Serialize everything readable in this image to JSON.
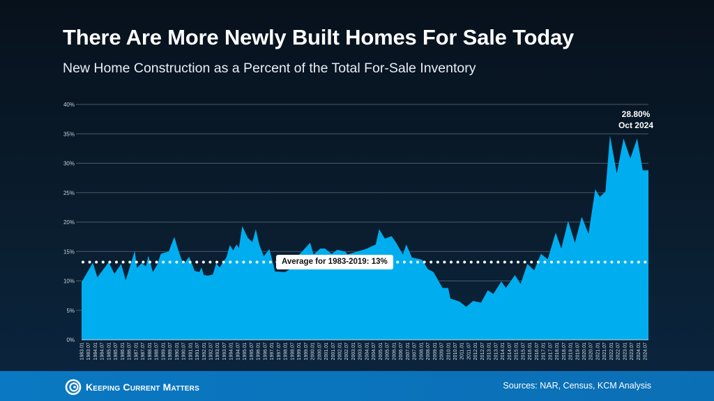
{
  "header": {
    "title": "There Are More Newly Built Homes For Sale Today",
    "subtitle": "New Home Construction as a Percent of the Total For-Sale Inventory"
  },
  "footer": {
    "logo_text": "Keeping Current Matters",
    "sources": "Sources: NAR, Census, KCM Analysis",
    "band_color": "#0a78c2"
  },
  "chart_data": {
    "type": "area",
    "color": "#00aeef",
    "ylim": [
      0,
      40
    ],
    "yticks": [
      "0%",
      "5%",
      "10%",
      "15%",
      "20%",
      "25%",
      "30%",
      "35%",
      "40%"
    ],
    "ytick_values": [
      0,
      5,
      10,
      15,
      20,
      25,
      30,
      35,
      40
    ],
    "grid": true,
    "xticks": [
      "1983.01",
      "1983.07",
      "1984.01",
      "1984.07",
      "1985.01",
      "1985.07",
      "1986.01",
      "1986.07",
      "1987.01",
      "1987.07",
      "1988.01",
      "1988.07",
      "1989.01",
      "1989.07",
      "1990.01",
      "1990.07",
      "1991.01",
      "1991.07",
      "1992.01",
      "1992.07",
      "1993.01",
      "1993.07",
      "1994.01",
      "1994.07",
      "1995.01",
      "1995.07",
      "1996.01",
      "1996.07",
      "1997.01",
      "1997.07",
      "1998.01",
      "1998.07",
      "1999.01",
      "1999.07",
      "2000.01",
      "2000.07",
      "2001.01",
      "2001.07",
      "2002.01",
      "2002.07",
      "2003.01",
      "2003.07",
      "2004.01",
      "2004.07",
      "2005.01",
      "2005.07",
      "2006.01",
      "2006.07",
      "2007.01",
      "2007.07",
      "2008.01",
      "2008.07",
      "2009.01",
      "2009.07",
      "2010.01",
      "2010.07",
      "2011.01",
      "2011.07",
      "2012.01",
      "2012.07",
      "2013.01",
      "2013.07",
      "2014.01",
      "2014.07",
      "2015.01",
      "2015.07",
      "2016.01",
      "2016.07",
      "2017.01",
      "2017.07",
      "2018.01",
      "2018.07",
      "2019.01",
      "2019.07",
      "2020.01",
      "2020.07",
      "2021.01",
      "2021.07",
      "2022.01",
      "2022.07",
      "2023.01",
      "2023.07",
      "2024.01",
      "2024.07"
    ],
    "x": [
      "1983-01",
      "1983-11",
      "1984-03",
      "1985-01",
      "1985-06",
      "1985-12",
      "1986-04",
      "1986-12",
      "1987-02",
      "1987-06",
      "1987-10",
      "1987-12",
      "1988-04",
      "1988-08",
      "1988-11",
      "1989-06",
      "1989-11",
      "1990-02",
      "1990-07",
      "1990-12",
      "1991-05",
      "1991-09",
      "1991-11",
      "1992-01",
      "1992-05",
      "1992-09",
      "1992-12",
      "1993-03",
      "1993-09",
      "1993-12",
      "1994-03",
      "1994-06",
      "1994-08",
      "1994-11",
      "1995-04",
      "1995-08",
      "1995-11",
      "1996-02",
      "1996-06",
      "1996-11",
      "1997-04",
      "1998-01",
      "1998-05",
      "1998-11",
      "1999-11",
      "2000-02",
      "2000-08",
      "2000-12",
      "2001-06",
      "2001-11",
      "2002-06",
      "2002-08",
      "2003-12",
      "2004-09",
      "2004-12",
      "2005-05",
      "2005-11",
      "2006-03",
      "2006-09",
      "2006-12",
      "2007-05",
      "2008-02",
      "2008-07",
      "2008-12",
      "2009-08",
      "2010-01",
      "2010-03",
      "2010-11",
      "2011-05",
      "2011-11",
      "2012-06",
      "2012-12",
      "2013-05",
      "2013-12",
      "2014-04",
      "2014-12",
      "2015-05",
      "2015-11",
      "2016-05",
      "2016-11",
      "2017-05",
      "2017-12",
      "2018-05",
      "2018-11",
      "2019-05",
      "2019-11",
      "2020-05",
      "2020-11",
      "2021-03",
      "2021-08",
      "2021-12",
      "2022-06",
      "2022-12",
      "2023-06",
      "2023-12",
      "2024-05",
      "2024-10"
    ],
    "values": [
      9.8,
      13.1,
      10.6,
      13.2,
      11.2,
      12.9,
      10.1,
      15.1,
      12.2,
      13,
      12.5,
      14.3,
      11.5,
      12.8,
      14.6,
      15,
      17.5,
      15.5,
      12.8,
      14.1,
      11.7,
      11.5,
      12.3,
      11,
      10.9,
      11.1,
      13,
      12.3,
      14,
      16.1,
      15.2,
      16.2,
      15.6,
      19.3,
      17.3,
      16.6,
      18.8,
      16.2,
      14.2,
      15.4,
      11.6,
      11.5,
      12,
      14,
      16.5,
      14.5,
      15.5,
      15.5,
      14.6,
      15.3,
      15,
      14.5,
      15.4,
      16.2,
      18.8,
      17.2,
      17.6,
      16.5,
      14.5,
      16.2,
      14,
      13.6,
      12,
      11.5,
      8.8,
      8.8,
      7,
      6.5,
      5.6,
      6.6,
      6.3,
      8.4,
      7.8,
      9.9,
      8.8,
      11,
      9.5,
      12.9,
      11.8,
      14.6,
      13.7,
      18.2,
      15.5,
      20.2,
      16.5,
      20.9,
      18,
      25.6,
      24.3,
      25.2,
      34.7,
      28.3,
      34.2,
      30.8,
      34.2,
      28.8,
      28.8
    ],
    "average": {
      "value": 13.2,
      "label": "Average for 1983-2019: 13%"
    },
    "annotation": {
      "value": "28.80%",
      "date": "Oct 2024"
    }
  }
}
